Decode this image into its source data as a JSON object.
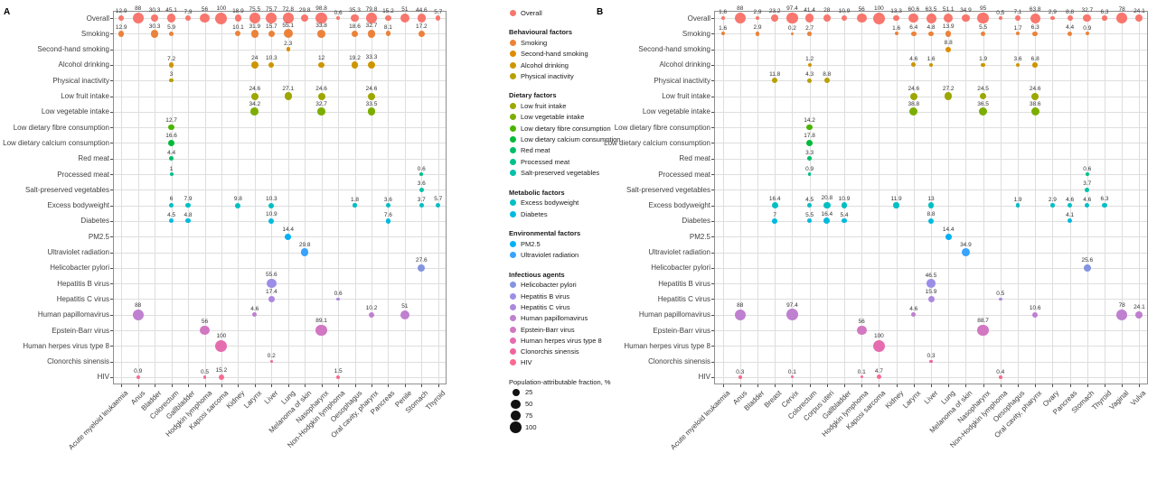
{
  "panels_meta": {
    "a_label": "A",
    "b_label": "B"
  },
  "factors": [
    {
      "name": "Overall",
      "color": "#F8766D"
    },
    {
      "name": "Smoking",
      "color": "#EC8239"
    },
    {
      "name": "Second-hand smoking",
      "color": "#DE8C00"
    },
    {
      "name": "Alcohol drinking",
      "color": "#CD9600"
    },
    {
      "name": "Physical inactivity",
      "color": "#B7A000"
    },
    {
      "name": "Low fruit intake",
      "color": "#9CA700"
    },
    {
      "name": "Low vegetable intake",
      "color": "#7CAE00"
    },
    {
      "name": "Low dietary fibre consumption",
      "color": "#49B500"
    },
    {
      "name": "Low dietary calcium consumption",
      "color": "#00BA38"
    },
    {
      "name": "Red meat",
      "color": "#00BE67"
    },
    {
      "name": "Processed meat",
      "color": "#00C08B"
    },
    {
      "name": "Salt-preserved vegetables",
      "color": "#00C1A9"
    },
    {
      "name": "Excess bodyweight",
      "color": "#00BFC4"
    },
    {
      "name": "Diabetes",
      "color": "#00BADE"
    },
    {
      "name": "PM2.5",
      "color": "#00B2F3"
    },
    {
      "name": "Ultraviolet radiation",
      "color": "#38A3FF"
    },
    {
      "name": "Helicobacter pylori",
      "color": "#8494E0"
    },
    {
      "name": "Hepatitis B virus",
      "color": "#9B8EE8"
    },
    {
      "name": "Hepatitis C virus",
      "color": "#AC88DE"
    },
    {
      "name": "Human papillomavirus",
      "color": "#BF80D0"
    },
    {
      "name": "Epstein-Barr virus",
      "color": "#D277C1"
    },
    {
      "name": "Human herpes virus type 8",
      "color": "#E46CAF"
    },
    {
      "name": "Clonorchis sinensis",
      "color": "#F0649E"
    },
    {
      "name": "HIV",
      "color": "#FA6A90"
    }
  ],
  "legend": {
    "sections": [
      {
        "header": "",
        "items": [
          "Overall"
        ]
      },
      {
        "header": "Behavioural factors",
        "items": [
          "Smoking",
          "Second-hand smoking",
          "Alcohol drinking",
          "Physical inactivity"
        ]
      },
      {
        "header": "Dietary factors",
        "items": [
          "Low fruit intake",
          "Low vegetable intake",
          "Low dietary fibre consumption",
          "Low dietary calcium consumption",
          "Red meat",
          "Processed meat",
          "Salt-preserved vegetables"
        ]
      },
      {
        "header": "Metabolic factors",
        "items": [
          "Excess bodyweight",
          "Diabetes"
        ]
      },
      {
        "header": "Environmental factors",
        "items": [
          "PM2.5",
          "Ultraviolet radiation"
        ]
      },
      {
        "header": "Infectious agents",
        "items": [
          "Helicobacter pylori",
          "Hepatitis B virus",
          "Hepatitis C virus",
          "Human papillomavirus",
          "Epstein-Barr virus",
          "Human herpes virus type 8",
          "Clonorchis sinensis",
          "HIV"
        ]
      }
    ],
    "size_legend": {
      "title": "Population-attributable fraction, %",
      "values": [
        25,
        50,
        75,
        100
      ]
    }
  },
  "chart_data": [
    {
      "type": "bubble",
      "panel": "A",
      "size_unit": "Population-attributable fraction, %",
      "size_range": [
        0,
        100
      ],
      "x_categories": [
        "Acute myeloid leukaemia",
        "Anus",
        "Bladder",
        "Colorectum",
        "Gallbladder",
        "Hodgkin lymphoma",
        "Kaposi sarcoma",
        "Kidney",
        "Larynx",
        "Liver",
        "Lung",
        "Melanoma of skin",
        "Nasopharynx",
        "Non-Hodgkin lymphoma",
        "Oesophagus",
        "Oral cavity, pharynx",
        "Pancreas",
        "Penile",
        "Stomach",
        "Thyroid"
      ],
      "rows": [
        {
          "factor": "Overall",
          "values": {
            "Acute myeloid leukaemia": 12.9,
            "Anus": 88,
            "Bladder": 30.3,
            "Colorectum": 45.1,
            "Gallbladder": 7.9,
            "Hodgkin lymphoma": 56,
            "Kaposi sarcoma": 100,
            "Kidney": 18.9,
            "Larynx": 75.5,
            "Liver": 75.7,
            "Lung": 72.8,
            "Melanoma of skin": 29.8,
            "Nasopharynx": 98.8,
            "Non-Hodgkin lymphoma": 0.6,
            "Oesophagus": 35.3,
            "Oral cavity, pharynx": 79.8,
            "Pancreas": 15.2,
            "Penile": 51,
            "Stomach": 44.6,
            "Thyroid": 5.7
          }
        },
        {
          "factor": "Smoking",
          "values": {
            "Acute myeloid leukaemia": 12.9,
            "Bladder": 30.3,
            "Colorectum": 5.9,
            "Kidney": 10.1,
            "Larynx": 31.9,
            "Liver": 15.7,
            "Lung": 55.1,
            "Nasopharynx": 33.8,
            "Oesophagus": 18.6,
            "Oral cavity, pharynx": 32.7,
            "Pancreas": 8.1,
            "Stomach": 17.2
          }
        },
        {
          "factor": "Second-hand smoking",
          "values": {
            "Lung": 2.3
          }
        },
        {
          "factor": "Alcohol drinking",
          "values": {
            "Colorectum": 7.2,
            "Larynx": 24,
            "Liver": 10.3,
            "Nasopharynx": 12,
            "Oesophagus": 19.2,
            "Oral cavity, pharynx": 33.3
          }
        },
        {
          "factor": "Physical inactivity",
          "values": {
            "Colorectum": 3
          }
        },
        {
          "factor": "Low fruit intake",
          "values": {
            "Larynx": 24.6,
            "Lung": 27.1,
            "Nasopharynx": 24.6,
            "Oral cavity, pharynx": 24.6
          }
        },
        {
          "factor": "Low vegetable intake",
          "values": {
            "Larynx": 34.2,
            "Nasopharynx": 32.7,
            "Oral cavity, pharynx": 33.5
          }
        },
        {
          "factor": "Low dietary fibre consumption",
          "values": {
            "Colorectum": 12.7
          }
        },
        {
          "factor": "Low dietary calcium consumption",
          "values": {
            "Colorectum": 16.6
          }
        },
        {
          "factor": "Red meat",
          "values": {
            "Colorectum": 4.4
          }
        },
        {
          "factor": "Processed meat",
          "values": {
            "Colorectum": 1,
            "Stomach": 0.6
          }
        },
        {
          "factor": "Salt-preserved vegetables",
          "values": {
            "Stomach": 3.6
          }
        },
        {
          "factor": "Excess bodyweight",
          "values": {
            "Colorectum": 6,
            "Gallbladder": 7.9,
            "Kidney": 9.8,
            "Liver": 10.3,
            "Oesophagus": 1.8,
            "Pancreas": 3.6,
            "Stomach": 3.7,
            "Thyroid": 5.7
          }
        },
        {
          "factor": "Diabetes",
          "values": {
            "Colorectum": 4.5,
            "Gallbladder": 4.8,
            "Liver": 10.9,
            "Pancreas": 7.6
          }
        },
        {
          "factor": "PM2.5",
          "values": {
            "Lung": 14.4
          }
        },
        {
          "factor": "Ultraviolet radiation",
          "values": {
            "Melanoma of skin": 29.8
          }
        },
        {
          "factor": "Helicobacter pylori",
          "values": {
            "Stomach": 27.6
          }
        },
        {
          "factor": "Hepatitis B virus",
          "values": {
            "Liver": 55.6
          }
        },
        {
          "factor": "Hepatitis C virus",
          "values": {
            "Liver": 17.4,
            "Non-Hodgkin lymphoma": 0.6
          }
        },
        {
          "factor": "Human papillomavirus",
          "values": {
            "Anus": 88,
            "Larynx": 4.6,
            "Oral cavity, pharynx": 10.2,
            "Penile": 51
          }
        },
        {
          "factor": "Epstein-Barr virus",
          "values": {
            "Hodgkin lymphoma": 56,
            "Nasopharynx": 89.1
          }
        },
        {
          "factor": "Human herpes virus type 8",
          "values": {
            "Kaposi sarcoma": 100
          }
        },
        {
          "factor": "Clonorchis sinensis",
          "values": {
            "Liver": 0.2
          }
        },
        {
          "factor": "HIV",
          "values": {
            "Anus": 0.9,
            "Hodgkin lymphoma": 0.5,
            "Kaposi sarcoma": 15.2,
            "Non-Hodgkin lymphoma": 1.5
          }
        }
      ]
    },
    {
      "type": "bubble",
      "panel": "B",
      "size_unit": "Population-attributable fraction, %",
      "size_range": [
        0,
        100
      ],
      "x_categories": [
        "Acute myeloid leukaemia",
        "Anus",
        "Bladder",
        "Breast",
        "Cervix",
        "Colorectum",
        "Corpus uteri",
        "Gallbladder",
        "Hodgkin lymphoma",
        "Kaposi sarcoma",
        "Kidney",
        "Larynx",
        "Liver",
        "Lung",
        "Melanoma of skin",
        "Nasopharynx",
        "Non-Hodgkin lymphoma",
        "Oesophagus",
        "Oral cavity, pharynx",
        "Ovary",
        "Pancreas",
        "Stomach",
        "Thyroid",
        "Vaginal",
        "Vulva"
      ],
      "rows": [
        {
          "factor": "Overall",
          "values": {
            "Acute myeloid leukaemia": 1.6,
            "Anus": 88,
            "Bladder": 2.9,
            "Breast": 23.2,
            "Cervix": 97.4,
            "Colorectum": 41.4,
            "Corpus uteri": 28,
            "Gallbladder": 10.9,
            "Hodgkin lymphoma": 56,
            "Kaposi sarcoma": 100,
            "Kidney": 13.3,
            "Larynx": 60.6,
            "Liver": 63.5,
            "Lung": 51.1,
            "Melanoma of skin": 34.9,
            "Nasopharynx": 95,
            "Non-Hodgkin lymphoma": 0.5,
            "Oesophagus": 7.1,
            "Oral cavity, pharynx": 63.8,
            "Ovary": 2.9,
            "Pancreas": 8.8,
            "Stomach": 32.7,
            "Thyroid": 6.3,
            "Vaginal": 78,
            "Vulva": 24.1
          }
        },
        {
          "factor": "Smoking",
          "values": {
            "Acute myeloid leukaemia": 1.6,
            "Bladder": 2.9,
            "Cervix": 0.2,
            "Colorectum": 2.7,
            "Kidney": 1.6,
            "Larynx": 6.4,
            "Liver": 4.8,
            "Lung": 13.9,
            "Nasopharynx": 5.5,
            "Oesophagus": 1.7,
            "Oral cavity, pharynx": 6.3,
            "Pancreas": 4.4,
            "Stomach": 0.9
          }
        },
        {
          "factor": "Second-hand smoking",
          "values": {
            "Lung": 8.8
          }
        },
        {
          "factor": "Alcohol drinking",
          "values": {
            "Colorectum": 1.2,
            "Larynx": 4.6,
            "Liver": 1.6,
            "Nasopharynx": 1.9,
            "Oesophagus": 3.6,
            "Oral cavity, pharynx": 6.8
          }
        },
        {
          "factor": "Physical inactivity",
          "values": {
            "Breast": 11.8,
            "Colorectum": 4.3,
            "Corpus uteri": 8.8
          }
        },
        {
          "factor": "Low fruit intake",
          "values": {
            "Larynx": 24.6,
            "Lung": 27.2,
            "Nasopharynx": 24.5,
            "Oral cavity, pharynx": 24.6
          }
        },
        {
          "factor": "Low vegetable intake",
          "values": {
            "Larynx": 38.8,
            "Nasopharynx": 36.5,
            "Oral cavity, pharynx": 38.6
          }
        },
        {
          "factor": "Low dietary fibre consumption",
          "values": {
            "Colorectum": 14.2
          }
        },
        {
          "factor": "Low dietary calcium consumption",
          "values": {
            "Colorectum": 17.8
          }
        },
        {
          "factor": "Red meat",
          "values": {
            "Colorectum": 3.3
          }
        },
        {
          "factor": "Processed meat",
          "values": {
            "Colorectum": 0.9,
            "Stomach": 0.6
          }
        },
        {
          "factor": "Salt-preserved vegetables",
          "values": {
            "Stomach": 3.7
          }
        },
        {
          "factor": "Excess bodyweight",
          "values": {
            "Breast": 16.4,
            "Colorectum": 4.5,
            "Corpus uteri": 20.8,
            "Gallbladder": 10.9,
            "Kidney": 11.9,
            "Liver": 13,
            "Oesophagus": 1.9,
            "Ovary": 2.9,
            "Pancreas": 4.6,
            "Stomach": 4.6,
            "Thyroid": 6.3
          }
        },
        {
          "factor": "Diabetes",
          "values": {
            "Breast": 7,
            "Colorectum": 5.5,
            "Corpus uteri": 16.4,
            "Gallbladder": 5.4,
            "Liver": 8.8,
            "Pancreas": 4.1
          }
        },
        {
          "factor": "PM2.5",
          "values": {
            "Lung": 14.4
          }
        },
        {
          "factor": "Ultraviolet radiation",
          "values": {
            "Melanoma of skin": 34.9
          }
        },
        {
          "factor": "Helicobacter pylori",
          "values": {
            "Stomach": 25.6
          }
        },
        {
          "factor": "Hepatitis B virus",
          "values": {
            "Liver": 46.5
          }
        },
        {
          "factor": "Hepatitis C virus",
          "values": {
            "Liver": 15.9,
            "Non-Hodgkin lymphoma": 0.5
          }
        },
        {
          "factor": "Human papillomavirus",
          "values": {
            "Anus": 88,
            "Cervix": 97.4,
            "Larynx": 4.6,
            "Oral cavity, pharynx": 10.6,
            "Vaginal": 78,
            "Vulva": 24.1
          }
        },
        {
          "factor": "Epstein-Barr virus",
          "values": {
            "Hodgkin lymphoma": 56,
            "Nasopharynx": 88.7
          }
        },
        {
          "factor": "Human herpes virus type 8",
          "values": {
            "Kaposi sarcoma": 100
          }
        },
        {
          "factor": "Clonorchis sinensis",
          "values": {
            "Liver": 0.3
          }
        },
        {
          "factor": "HIV",
          "values": {
            "Anus": 0.3,
            "Cervix": 0.1,
            "Hodgkin lymphoma": 0.1,
            "Kaposi sarcoma": 4.7,
            "Non-Hodgkin lymphoma": 0.4
          }
        }
      ]
    }
  ]
}
